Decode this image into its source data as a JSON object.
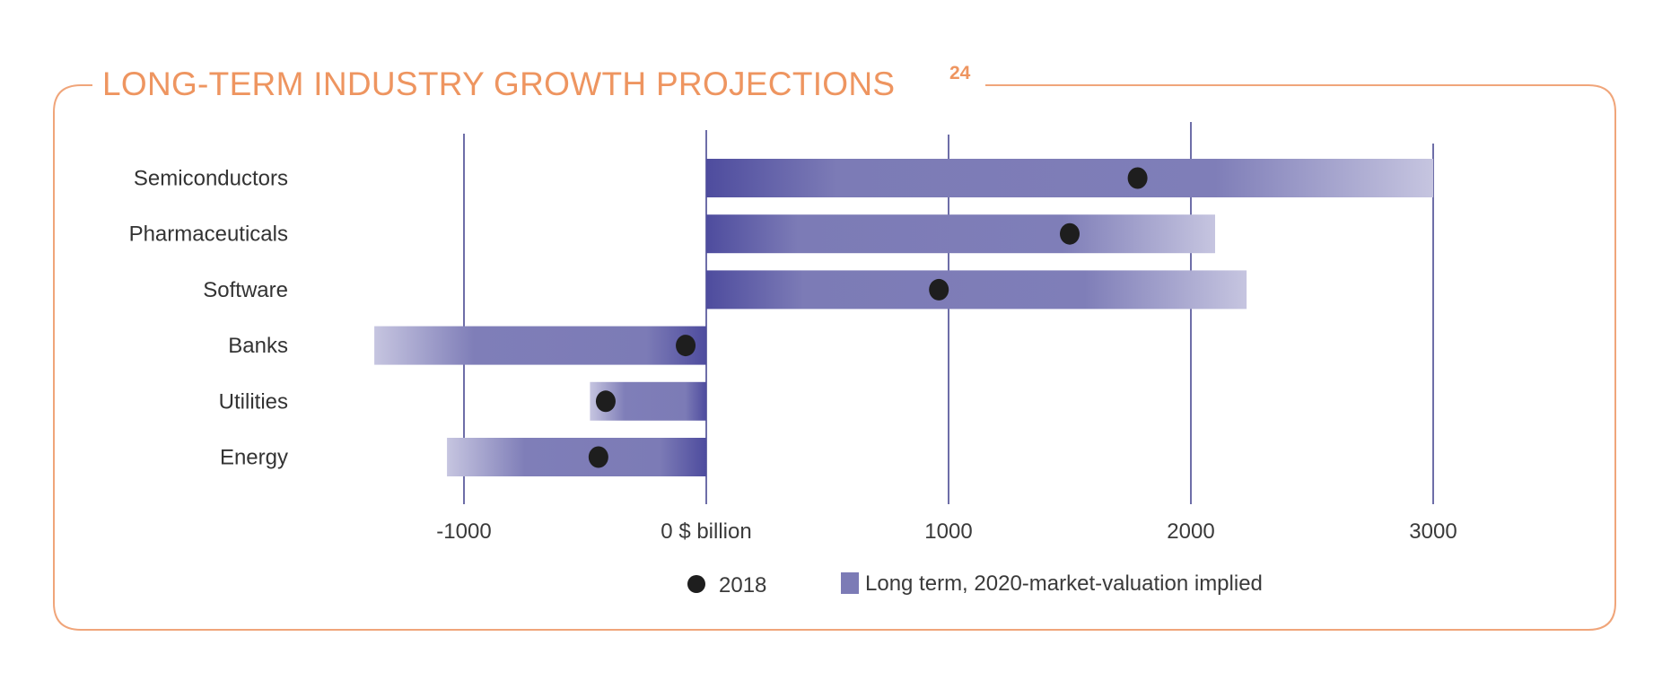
{
  "chart_data": {
    "type": "bar",
    "subtype": "floating-horizontal-bar-with-dot",
    "title": "LONG-TERM INDUSTRY GROWTH PROJECTIONS",
    "title_superscript": "24",
    "xlabel": "$ billion",
    "ylabel": "",
    "xlim": [
      -1500,
      3200
    ],
    "x_ticks": [
      -1000,
      0,
      1000,
      2000,
      3000
    ],
    "x_tick_labels": [
      "-1000",
      "0 $ billion",
      "1000",
      "2000",
      "3000"
    ],
    "grid": true,
    "categories": [
      "Semiconductors",
      "Pharmaceuticals",
      "Software",
      "Banks",
      "Utilities",
      "Energy"
    ],
    "series": [
      {
        "name": "Long term, 2020-market-valuation implied",
        "kind": "bar",
        "color": "#7C7BB6",
        "values": [
          3000,
          2100,
          2230,
          -1370,
          -480,
          -1070
        ]
      },
      {
        "name": "2018",
        "kind": "dot",
        "color": "#1E1E1E",
        "values": [
          1780,
          1500,
          960,
          -85,
          -415,
          -445
        ]
      }
    ],
    "legend": {
      "position": "bottom-center",
      "entries": [
        {
          "label": "2018",
          "marker": "circle",
          "color": "#1E1E1E"
        },
        {
          "label": "Long term, 2020-market-valuation implied",
          "marker": "square",
          "color": "#7C7BB6"
        }
      ]
    },
    "colors": {
      "accent": "#EE9560",
      "frame": "#F0A57A",
      "bar_dark": "#4E4C9E",
      "bar_mid": "#7C7BB6",
      "bar_light": "#C6C5E0",
      "grid": "#4A4A92"
    }
  }
}
